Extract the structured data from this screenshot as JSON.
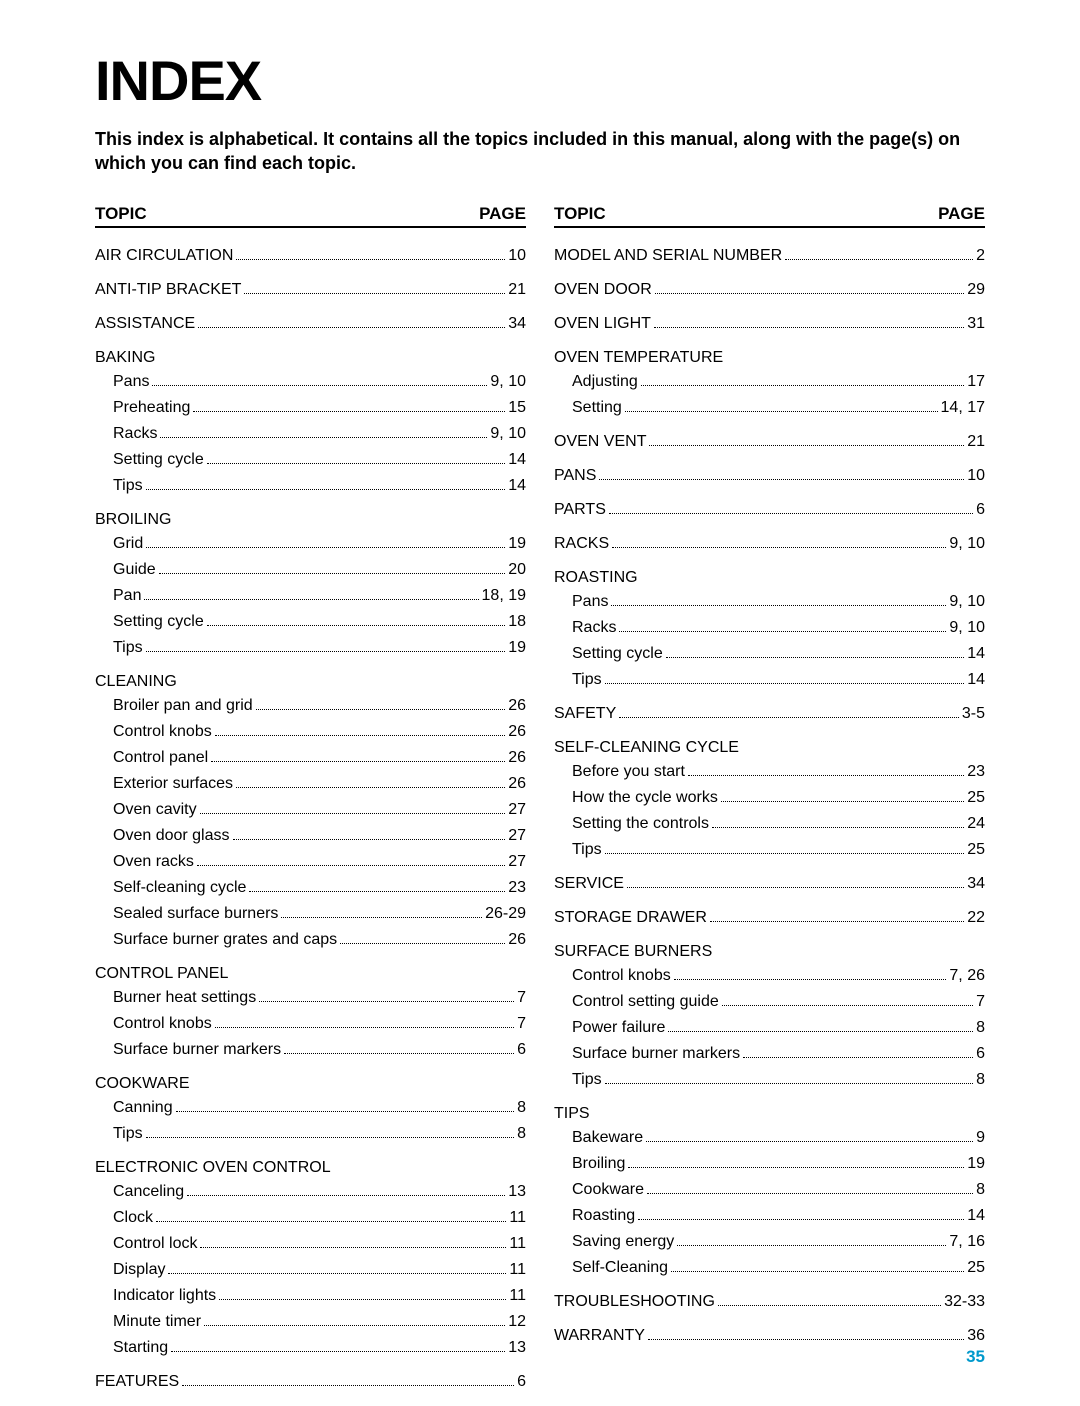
{
  "title": "INDEX",
  "intro": "This index is alphabetical. It contains all the topics included in this manual, along with the page(s) on which you can find each topic.",
  "header_topic": "TOPIC",
  "header_page": "PAGE",
  "page_number": "35",
  "left": [
    {
      "type": "single",
      "topic": "AIR CIRCULATION",
      "page": "10"
    },
    {
      "type": "single",
      "topic": "ANTI-TIP BRACKET",
      "page": "21"
    },
    {
      "type": "single",
      "topic": "ASSISTANCE",
      "page": "34"
    },
    {
      "type": "group",
      "heading": "BAKING",
      "items": [
        {
          "topic": "Pans",
          "page": "9, 10"
        },
        {
          "topic": "Preheating",
          "page": "15"
        },
        {
          "topic": "Racks",
          "page": "9, 10"
        },
        {
          "topic": "Setting cycle",
          "page": "14"
        },
        {
          "topic": "Tips",
          "page": "14"
        }
      ]
    },
    {
      "type": "group",
      "heading": "BROILING",
      "items": [
        {
          "topic": "Grid",
          "page": "19"
        },
        {
          "topic": "Guide",
          "page": "20"
        },
        {
          "topic": "Pan",
          "page": "18, 19"
        },
        {
          "topic": "Setting cycle",
          "page": "18"
        },
        {
          "topic": "Tips",
          "page": "19"
        }
      ]
    },
    {
      "type": "group",
      "heading": "CLEANING",
      "items": [
        {
          "topic": "Broiler pan and grid",
          "page": "26"
        },
        {
          "topic": "Control knobs",
          "page": "26"
        },
        {
          "topic": "Control panel",
          "page": "26"
        },
        {
          "topic": "Exterior surfaces",
          "page": "26"
        },
        {
          "topic": "Oven cavity",
          "page": "27"
        },
        {
          "topic": "Oven door glass",
          "page": "27"
        },
        {
          "topic": "Oven racks",
          "page": "27"
        },
        {
          "topic": "Self-cleaning cycle",
          "page": "23"
        },
        {
          "topic": "Sealed surface burners",
          "page": "26-29"
        },
        {
          "topic": "Surface burner grates and caps",
          "page": "26"
        }
      ]
    },
    {
      "type": "group",
      "heading": "CONTROL PANEL",
      "items": [
        {
          "topic": "Burner heat settings",
          "page": "7"
        },
        {
          "topic": "Control knobs",
          "page": "7"
        },
        {
          "topic": "Surface burner markers",
          "page": "6"
        }
      ]
    },
    {
      "type": "group",
      "heading": "COOKWARE",
      "items": [
        {
          "topic": "Canning",
          "page": "8"
        },
        {
          "topic": "Tips",
          "page": "8"
        }
      ]
    },
    {
      "type": "group",
      "heading": "ELECTRONIC OVEN CONTROL",
      "items": [
        {
          "topic": "Canceling",
          "page": "13"
        },
        {
          "topic": "Clock",
          "page": "11"
        },
        {
          "topic": "Control lock",
          "page": "11"
        },
        {
          "topic": "Display",
          "page": "11"
        },
        {
          "topic": "Indicator lights",
          "page": "11"
        },
        {
          "topic": "Minute timer",
          "page": "12"
        },
        {
          "topic": "Starting",
          "page": "13"
        }
      ]
    },
    {
      "type": "single",
      "topic": "FEATURES",
      "page": "6"
    }
  ],
  "right": [
    {
      "type": "single",
      "topic": "MODEL AND SERIAL NUMBER",
      "page": "2"
    },
    {
      "type": "single",
      "topic": "OVEN DOOR",
      "page": "29"
    },
    {
      "type": "single",
      "topic": "OVEN LIGHT",
      "page": "31"
    },
    {
      "type": "group",
      "heading": "OVEN TEMPERATURE",
      "items": [
        {
          "topic": "Adjusting",
          "page": "17"
        },
        {
          "topic": "Setting",
          "page": "14, 17"
        }
      ]
    },
    {
      "type": "single",
      "topic": "OVEN VENT",
      "page": "21"
    },
    {
      "type": "single",
      "topic": "PANS",
      "page": "10"
    },
    {
      "type": "single",
      "topic": "PARTS",
      "page": "6"
    },
    {
      "type": "single",
      "topic": "RACKS",
      "page": "9, 10"
    },
    {
      "type": "group",
      "heading": "ROASTING",
      "items": [
        {
          "topic": "Pans",
          "page": "9, 10"
        },
        {
          "topic": "Racks",
          "page": "9, 10"
        },
        {
          "topic": "Setting cycle",
          "page": "14"
        },
        {
          "topic": "Tips",
          "page": "14"
        }
      ]
    },
    {
      "type": "single",
      "topic": "SAFETY",
      "page": "3-5"
    },
    {
      "type": "group",
      "heading": "SELF-CLEANING CYCLE",
      "items": [
        {
          "topic": "Before you start",
          "page": "23"
        },
        {
          "topic": "How the cycle works",
          "page": "25"
        },
        {
          "topic": "Setting the controls",
          "page": "24"
        },
        {
          "topic": "Tips",
          "page": "25"
        }
      ]
    },
    {
      "type": "single",
      "topic": "SERVICE",
      "page": "34"
    },
    {
      "type": "single",
      "topic": "STORAGE DRAWER",
      "page": "22"
    },
    {
      "type": "group",
      "heading": "SURFACE BURNERS",
      "items": [
        {
          "topic": "Control knobs",
          "page": "7, 26"
        },
        {
          "topic": "Control setting guide",
          "page": "7"
        },
        {
          "topic": "Power failure",
          "page": "8"
        },
        {
          "topic": "Surface burner markers",
          "page": "6"
        },
        {
          "topic": "Tips",
          "page": "8"
        }
      ]
    },
    {
      "type": "group",
      "heading": "TIPS",
      "items": [
        {
          "topic": "Bakeware",
          "page": "9"
        },
        {
          "topic": "Broiling",
          "page": "19"
        },
        {
          "topic": "Cookware",
          "page": "8"
        },
        {
          "topic": "Roasting",
          "page": "14"
        },
        {
          "topic": "Saving energy",
          "page": "7, 16"
        },
        {
          "topic": "Self-Cleaning",
          "page": "25"
        }
      ]
    },
    {
      "type": "single",
      "topic": "TROUBLESHOOTING",
      "page": "32-33"
    },
    {
      "type": "single",
      "topic": "WARRANTY",
      "page": "36"
    }
  ]
}
